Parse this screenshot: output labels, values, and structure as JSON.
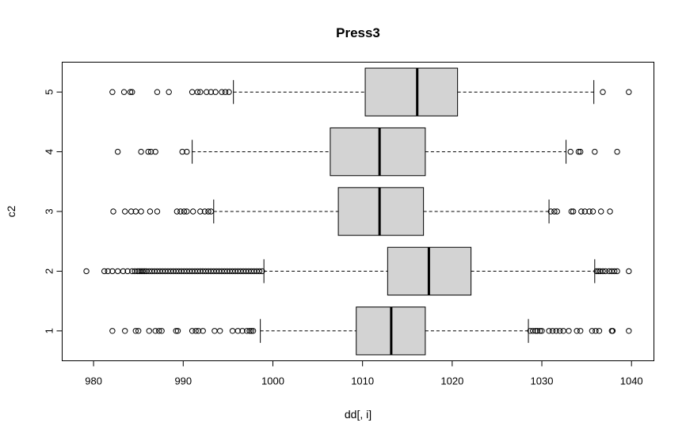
{
  "chart_data": {
    "type": "boxplot",
    "orientation": "horizontal",
    "title": "Press3",
    "xlabel": "dd[, i]",
    "ylabel": "c2",
    "xlim": [
      976.5,
      1042.5
    ],
    "x_ticks": [
      980,
      990,
      1000,
      1010,
      1020,
      1030,
      1040
    ],
    "grid": false,
    "box_fill": "#d3d3d3",
    "categories": [
      "1",
      "2",
      "3",
      "4",
      "5"
    ],
    "boxes": [
      {
        "category": "1",
        "whisker_low": 998.6,
        "q1": 1009.3,
        "median": 1013.2,
        "q3": 1017.0,
        "whisker_high": 1028.5,
        "outliers": [
          982.1,
          983.5,
          984.7,
          985.0,
          986.2,
          986.9,
          987.3,
          987.6,
          989.2,
          989.4,
          991.0,
          991.4,
          991.7,
          992.2,
          993.5,
          994.1,
          995.5,
          996.1,
          996.6,
          997.1,
          997.4,
          997.6,
          997.8,
          1028.7,
          1029.0,
          1029.3,
          1029.5,
          1029.8,
          1030.0,
          1030.8,
          1031.2,
          1031.6,
          1032.0,
          1032.4,
          1033.0,
          1033.9,
          1034.3,
          1035.6,
          1036.0,
          1036.4,
          1037.8,
          1037.9,
          1039.7
        ]
      },
      {
        "category": "2",
        "whisker_low": 999.0,
        "q1": 1012.8,
        "median": 1017.4,
        "q3": 1022.1,
        "whisker_high": 1035.9,
        "outliers": [
          979.2,
          981.2,
          981.6,
          982.1,
          982.7,
          983.3,
          983.8,
          984.3,
          984.6,
          984.9,
          985.1,
          985.3,
          985.5,
          985.7,
          985.9,
          986.2,
          986.5,
          986.8,
          987.1,
          987.4,
          987.7,
          988.0,
          988.3,
          988.6,
          988.9,
          989.2,
          989.5,
          989.8,
          990.1,
          990.4,
          990.7,
          991.0,
          991.3,
          991.6,
          991.9,
          992.2,
          992.5,
          992.8,
          993.1,
          993.4,
          993.7,
          994.0,
          994.3,
          994.6,
          994.9,
          995.2,
          995.5,
          995.8,
          996.1,
          996.4,
          996.7,
          997.0,
          997.3,
          997.6,
          997.9,
          998.2,
          998.5,
          998.8,
          1036.1,
          1036.3,
          1036.5,
          1036.8,
          1037.1,
          1037.5,
          1037.8,
          1038.1,
          1038.4,
          1039.7
        ]
      },
      {
        "category": "3",
        "whisker_low": 993.4,
        "q1": 1007.3,
        "median": 1011.9,
        "q3": 1016.8,
        "whisker_high": 1030.8,
        "outliers": [
          982.2,
          983.5,
          984.2,
          984.7,
          985.3,
          986.3,
          987.1,
          989.3,
          989.7,
          990.1,
          990.4,
          991.1,
          991.9,
          992.4,
          992.8,
          993.1,
          1031.0,
          1031.4,
          1031.7,
          1033.3,
          1033.5,
          1034.4,
          1034.8,
          1035.3,
          1035.7,
          1036.6,
          1037.6
        ]
      },
      {
        "category": "4",
        "whisker_low": 991.0,
        "q1": 1006.4,
        "median": 1011.9,
        "q3": 1017.0,
        "whisker_high": 1032.7,
        "outliers": [
          982.7,
          985.3,
          986.1,
          986.4,
          986.9,
          989.9,
          990.4,
          1033.2,
          1034.1,
          1034.3,
          1035.9,
          1038.4
        ]
      },
      {
        "category": "5",
        "whisker_low": 995.6,
        "q1": 1010.3,
        "median": 1016.1,
        "q3": 1020.6,
        "whisker_high": 1035.8,
        "outliers": [
          982.1,
          983.4,
          984.1,
          984.3,
          987.1,
          988.4,
          991.0,
          991.6,
          991.9,
          992.6,
          993.1,
          993.6,
          994.3,
          994.7,
          995.1,
          1036.8,
          1039.7
        ]
      }
    ]
  }
}
